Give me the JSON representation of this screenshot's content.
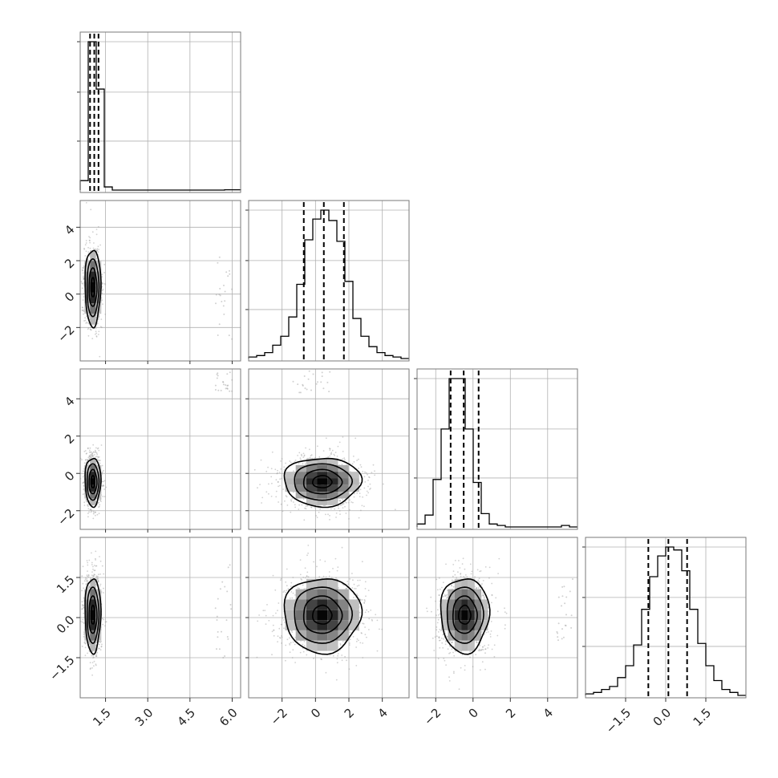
{
  "chart_data": {
    "type": "corner",
    "parameters": 4,
    "layout": "lower-triangle",
    "grid": true,
    "marginal_quantiles": [
      0.16,
      0.5,
      0.84
    ],
    "params": [
      {
        "range": [
          0.6,
          6.3
        ],
        "ticks": [
          1.5,
          3.0,
          4.5,
          6.0
        ],
        "tick_labels": [
          "1.5",
          "3.0",
          "4.5",
          "6.0"
        ],
        "quantiles": [
          0.95,
          1.1,
          1.25
        ],
        "hist": {
          "edges": [
            0.6,
            0.885,
            1.17,
            1.455,
            1.74,
            2.025,
            2.31,
            2.595,
            2.88,
            3.165,
            3.45,
            3.735,
            4.02,
            4.305,
            4.59,
            4.875,
            5.16,
            5.445,
            5.73,
            6.015,
            6.3
          ],
          "counts": [
            0.06,
            0.94,
            0.64,
            0.02,
            0,
            0,
            0,
            0,
            0,
            0,
            0,
            0,
            0,
            0,
            0,
            0,
            0,
            0,
            0.002,
            0.002
          ]
        }
      },
      {
        "range": [
          -4.0,
          5.6
        ],
        "ticks": [
          -2,
          0,
          2,
          4
        ],
        "tick_labels": [
          "−2",
          "0",
          "2",
          "4"
        ],
        "quantiles": [
          -0.7,
          0.5,
          1.7
        ],
        "hist": {
          "edges": [
            -4.0,
            -3.52,
            -3.04,
            -2.56,
            -2.08,
            -1.6,
            -1.12,
            -0.64,
            -0.16,
            0.32,
            0.8,
            1.28,
            1.76,
            2.24,
            2.72,
            3.2,
            3.68,
            4.16,
            4.64,
            5.12,
            5.6
          ],
          "counts": [
            0.01,
            0.02,
            0.04,
            0.09,
            0.15,
            0.28,
            0.5,
            0.8,
            0.94,
            1.0,
            0.93,
            0.79,
            0.52,
            0.27,
            0.15,
            0.08,
            0.04,
            0.02,
            0.01,
            0.0
          ]
        }
      },
      {
        "range": [
          -3.0,
          5.6
        ],
        "ticks": [
          -2,
          0,
          2,
          4
        ],
        "tick_labels": [
          "−2",
          "0",
          "2",
          "4"
        ],
        "quantiles": [
          -1.2,
          -0.5,
          0.3
        ],
        "hist": {
          "edges": [
            -3.0,
            -2.57,
            -2.14,
            -1.71,
            -1.28,
            -0.85,
            -0.42,
            0.01,
            0.44,
            0.87,
            1.3,
            1.73,
            2.16,
            2.59,
            3.02,
            3.45,
            3.88,
            4.31,
            4.74,
            5.17,
            5.6
          ],
          "counts": [
            0.02,
            0.08,
            0.32,
            0.66,
            1.0,
            1.0,
            0.66,
            0.3,
            0.09,
            0.02,
            0.01,
            0.0,
            0.0,
            0.0,
            0.0,
            0.0,
            0.0,
            0.0,
            0.01,
            0.0
          ]
        }
      },
      {
        "range": [
          -3.0,
          3.0
        ],
        "ticks": [
          -1.5,
          0.0,
          1.5
        ],
        "tick_labels": [
          "−1.5",
          "0.0",
          "1.5"
        ],
        "quantiles": [
          -0.65,
          0.1,
          0.8
        ],
        "hist": {
          "edges": [
            -3.0,
            -2.7,
            -2.4,
            -2.1,
            -1.8,
            -1.5,
            -1.2,
            -0.9,
            -0.6,
            -0.3,
            0.0,
            0.3,
            0.6,
            0.9,
            1.2,
            1.5,
            1.8,
            2.1,
            2.4,
            2.7,
            3.0
          ],
          "counts": [
            0.01,
            0.02,
            0.04,
            0.06,
            0.12,
            0.2,
            0.34,
            0.58,
            0.8,
            0.94,
            1.0,
            0.98,
            0.84,
            0.58,
            0.35,
            0.2,
            0.1,
            0.04,
            0.02,
            0.0
          ]
        }
      }
    ],
    "pairs": [
      {
        "x": 0,
        "y": 1,
        "mean": [
          1.05,
          0.4
        ],
        "sd": [
          0.14,
          1.15
        ],
        "outlier_region": {
          "x": [
            5.4,
            6.0
          ],
          "y": [
            -3.2,
            2.4
          ]
        }
      },
      {
        "x": 0,
        "y": 2,
        "mean": [
          1.05,
          -0.45
        ],
        "sd": [
          0.14,
          0.65
        ],
        "outlier_region": {
          "x": [
            5.4,
            6.0
          ],
          "y": [
            4.3,
            5.5
          ]
        }
      },
      {
        "x": 1,
        "y": 2,
        "mean": [
          0.4,
          -0.45
        ],
        "sd": [
          1.15,
          0.65
        ],
        "outlier_region": {
          "x": [
            -1.5,
            1.0
          ],
          "y": [
            4.3,
            5.5
          ]
        }
      },
      {
        "x": 0,
        "y": 3,
        "mean": [
          1.05,
          0.1
        ],
        "sd": [
          0.14,
          0.7
        ],
        "outlier_region": {
          "x": [
            5.4,
            6.0
          ],
          "y": [
            -1.5,
            2.0
          ]
        }
      },
      {
        "x": 1,
        "y": 3,
        "mean": [
          0.4,
          0.1
        ],
        "sd": [
          1.15,
          0.7
        ],
        "outlier_region": null
      },
      {
        "x": 2,
        "y": 3,
        "mean": [
          -0.45,
          0.1
        ],
        "sd": [
          0.65,
          0.7
        ],
        "outlier_region": {
          "x": [
            4.5,
            5.4
          ],
          "y": [
            -1.0,
            1.5
          ]
        }
      }
    ]
  }
}
